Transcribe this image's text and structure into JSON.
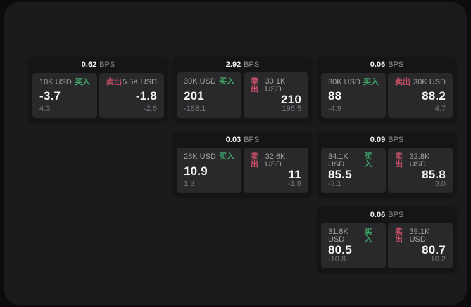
{
  "labels": {
    "bps_unit": "BPS",
    "buy": "买入",
    "sell": "卖出"
  },
  "colors": {
    "buy": "#3fa56b",
    "sell": "#c9506a",
    "panel_bg": "#1b1b1d",
    "card_bg": "#151517",
    "subpanel_bg": "#29292b",
    "page_bg": "#0c0c0d"
  },
  "cards": [
    {
      "bps": "0.62",
      "col": 1,
      "row": 1,
      "buy": {
        "size": "10K USD",
        "price": "-3.7",
        "delta": "4.3"
      },
      "sell": {
        "size": "5.5K USD",
        "price": "-1.8",
        "delta": "-2.6"
      }
    },
    {
      "bps": "2.92",
      "col": 2,
      "row": 1,
      "buy": {
        "size": "30K USD",
        "price": "201",
        "delta": "-188.1"
      },
      "sell": {
        "size": "30.1K USD",
        "price": "210",
        "delta": "196.5"
      }
    },
    {
      "bps": "0.06",
      "col": 3,
      "row": 1,
      "buy": {
        "size": "30K USD",
        "price": "88",
        "delta": "-4.9"
      },
      "sell": {
        "size": "30K USD",
        "price": "88.2",
        "delta": "4.7"
      }
    },
    {
      "bps": "0.03",
      "col": 2,
      "row": 2,
      "buy": {
        "size": "28K USD",
        "price": "10.9",
        "delta": "1.3"
      },
      "sell": {
        "size": "32.6K USD",
        "price": "11",
        "delta": "-1.8"
      }
    },
    {
      "bps": "0.09",
      "col": 3,
      "row": 2,
      "buy": {
        "size": "34.1K USD",
        "price": "85.5",
        "delta": "-3.1"
      },
      "sell": {
        "size": "32.8K USD",
        "price": "85.8",
        "delta": "3.0"
      }
    },
    {
      "bps": "0.06",
      "col": 3,
      "row": 3,
      "buy": {
        "size": "31.8K USD",
        "price": "80.5",
        "delta": "-10.8"
      },
      "sell": {
        "size": "39.1K USD",
        "price": "80.7",
        "delta": "10.2"
      }
    }
  ]
}
